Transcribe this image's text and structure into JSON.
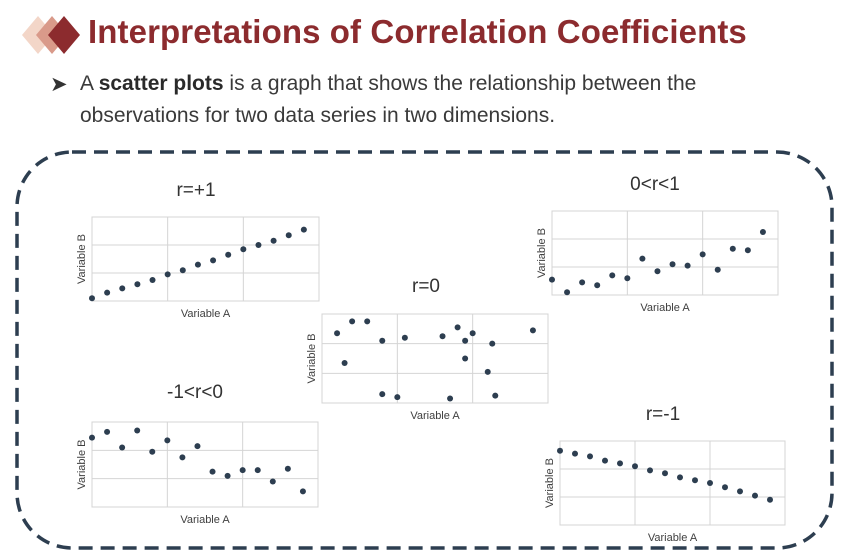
{
  "header": {
    "title": "Interpretations of Correlation Coefficients",
    "accent_color": "#8c2b2e"
  },
  "bullet": {
    "marker_icon": "arrow-bullet-icon",
    "prefix": "A ",
    "term": "scatter plots",
    "suffix": " is a graph that shows the relationship between the observations for two data series in two dimensions."
  },
  "chart_data": [
    {
      "type": "scatter",
      "title": "r=+1",
      "xlabel": "Variable A",
      "ylabel": "Variable B",
      "xlim": [
        0,
        15
      ],
      "ylim": [
        0,
        3
      ],
      "points": [
        [
          0,
          0.1
        ],
        [
          1,
          0.3
        ],
        [
          2,
          0.45
        ],
        [
          3,
          0.6
        ],
        [
          4,
          0.75
        ],
        [
          5,
          0.95
        ],
        [
          6,
          1.1
        ],
        [
          7,
          1.3
        ],
        [
          8,
          1.45
        ],
        [
          9,
          1.65
        ],
        [
          10,
          1.85
        ],
        [
          11,
          2.0
        ],
        [
          12,
          2.15
        ],
        [
          13,
          2.35
        ],
        [
          14,
          2.55
        ]
      ]
    },
    {
      "type": "scatter",
      "title": "0<r<1",
      "xlabel": "Variable A",
      "ylabel": "Variable B",
      "xlim": [
        0,
        15
      ],
      "ylim": [
        0,
        3
      ],
      "points": [
        [
          0,
          0.55
        ],
        [
          1,
          0.1
        ],
        [
          2,
          0.45
        ],
        [
          3,
          0.35
        ],
        [
          4,
          0.7
        ],
        [
          5,
          0.6
        ],
        [
          6,
          1.3
        ],
        [
          7,
          0.85
        ],
        [
          8,
          1.1
        ],
        [
          9,
          1.05
        ],
        [
          10,
          1.45
        ],
        [
          11,
          0.9
        ],
        [
          12,
          1.65
        ],
        [
          13,
          1.6
        ],
        [
          14,
          2.25
        ]
      ]
    },
    {
      "type": "scatter",
      "title": "r=0",
      "xlabel": "Variable A",
      "ylabel": "Variable B",
      "xlim": [
        0,
        15
      ],
      "ylim": [
        0,
        3
      ],
      "points": [
        [
          1,
          2.35
        ],
        [
          1.5,
          1.35
        ],
        [
          2,
          2.75
        ],
        [
          3,
          2.75
        ],
        [
          4,
          2.1
        ],
        [
          4,
          0.3
        ],
        [
          5,
          0.2
        ],
        [
          5.5,
          2.2
        ],
        [
          8,
          2.25
        ],
        [
          8.5,
          0.15
        ],
        [
          9,
          2.55
        ],
        [
          9.5,
          2.1
        ],
        [
          9.5,
          1.5
        ],
        [
          10,
          2.35
        ],
        [
          11,
          1.05
        ],
        [
          11.3,
          2.0
        ],
        [
          11.5,
          0.25
        ],
        [
          14,
          2.45
        ]
      ]
    },
    {
      "type": "scatter",
      "title": "-1<r<0",
      "xlabel": "Variable A",
      "ylabel": "Variable B",
      "xlim": [
        0,
        15
      ],
      "ylim": [
        0,
        3
      ],
      "points": [
        [
          0,
          2.45
        ],
        [
          1,
          2.65
        ],
        [
          2,
          2.1
        ],
        [
          3,
          2.7
        ],
        [
          4,
          1.95
        ],
        [
          5,
          2.35
        ],
        [
          6,
          1.75
        ],
        [
          7,
          2.15
        ],
        [
          8,
          1.25
        ],
        [
          9,
          1.1
        ],
        [
          10,
          1.3
        ],
        [
          11,
          1.3
        ],
        [
          12,
          0.9
        ],
        [
          13,
          1.35
        ],
        [
          14,
          0.55
        ]
      ]
    },
    {
      "type": "scatter",
      "title": "r=-1",
      "xlabel": "Variable A",
      "ylabel": "Variable B",
      "xlim": [
        0,
        15
      ],
      "ylim": [
        0,
        3
      ],
      "points": [
        [
          0,
          2.65
        ],
        [
          1,
          2.55
        ],
        [
          2,
          2.45
        ],
        [
          3,
          2.3
        ],
        [
          4,
          2.2
        ],
        [
          5,
          2.1
        ],
        [
          6,
          1.95
        ],
        [
          7,
          1.85
        ],
        [
          8,
          1.7
        ],
        [
          9,
          1.6
        ],
        [
          10,
          1.5
        ],
        [
          11,
          1.35
        ],
        [
          12,
          1.2
        ],
        [
          13,
          1.05
        ],
        [
          14,
          0.9
        ]
      ]
    }
  ]
}
